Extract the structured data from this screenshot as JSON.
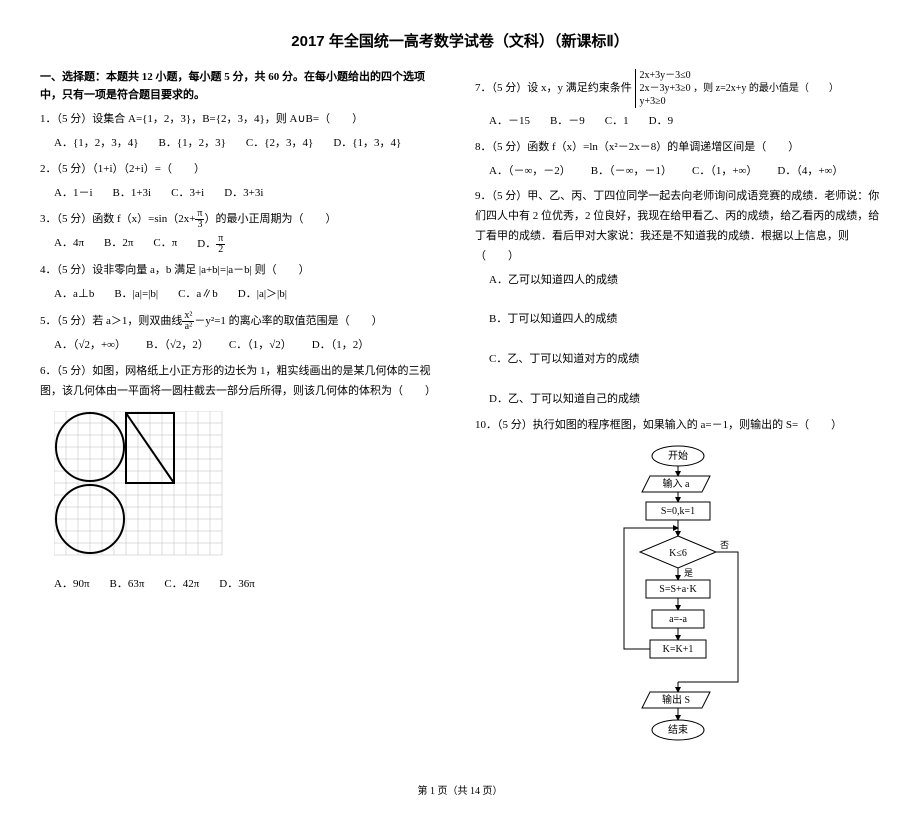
{
  "title": "2017 年全国统一高考数学试卷（文科）（新课标Ⅱ）",
  "section1": "一、选择题：本题共 12 小题，每小题 5 分，共 60 分。在每小题给出的四个选项中，只有一项是符合题目要求的。",
  "q1": {
    "stem": "1．（5 分）设集合 A={1，2，3}，B={2，3，4}，则 A∪B=（　　）",
    "A": "A．{1，2，3，4}",
    "B": "B．{1，2，3}",
    "C": "C．{2，3，4}",
    "D": "D．{1，3，4}"
  },
  "q2": {
    "stem": "2．（5 分）（1+i）（2+i）=（　　）",
    "A": "A．1－i",
    "B": "B．1+3i",
    "C": "C．3+i",
    "D": "D．3+3i"
  },
  "q3": {
    "stemL": "3．（5 分）函数 f（x）=sin（2x+",
    "stemR": "）的最小正周期为（　　）",
    "fracN": "π",
    "fracD": "3",
    "A": "A．4π",
    "B": "B．2π",
    "C": "C．π",
    "D": "D．",
    "DfracN": "π",
    "DfracD": "2"
  },
  "q4": {
    "stem": "4．（5 分）设非零向量 a，b 满足 |a+b|=|a－b| 则（　　）",
    "A": "A．a⊥b",
    "B": "B．|a|=|b|",
    "C": "C．a∥b",
    "D": "D．|a|＞|b|"
  },
  "q5": {
    "stemL": "5．（5 分）若 a＞1，则双曲线",
    "stemR": "－y²=1 的离心率的取值范围是（　　）",
    "fracN": "x²",
    "fracD": "a²",
    "A": "A．（√2，+∞）",
    "B": "B．（√2，2）",
    "C": "C．（1，√2）",
    "D": "D．（1，2）"
  },
  "q6": {
    "stem": "6．（5 分）如图，网格纸上小正方形的边长为 1，粗实线画出的是某几何体的三视图，该几何体由一平面将一圆柱截去一部分后所得，则该几何体的体积为（　　）",
    "A": "A．90π",
    "B": "B．63π",
    "C": "C．42π",
    "D": "D．36π"
  },
  "q7": {
    "stemL": "7．（5 分）设 x，y 满足约束条件",
    "line1": "2x+3y－3≤0",
    "line2": "2x－3y+3≥0 ，则 z=2x+y 的最小值是（　　）",
    "line3": "y+3≥0",
    "A": "A．－15",
    "B": "B．－9",
    "C": "C．1",
    "D": "D．9"
  },
  "q8": {
    "stem": "8．（5 分）函数 f（x）=ln（x²－2x－8）的单调递增区间是（　　）",
    "A": "A．（－∞，－2）",
    "B": "B．（－∞，－1）",
    "C": "C．（1，+∞）",
    "D": "D．（4，+∞）"
  },
  "q9": {
    "stem": "9．（5 分）甲、乙、丙、丁四位同学一起去向老师询问成语竞赛的成绩．老师说：你们四人中有 2 位优秀，2 位良好，我现在给甲看乙、丙的成绩，给乙看丙的成绩，给丁看甲的成绩．看后甲对大家说：我还是不知道我的成绩．根据以上信息，则（　　）",
    "A": "A．乙可以知道四人的成绩",
    "B": "B．丁可以知道四人的成绩",
    "C": "C．乙、丁可以知道对方的成绩",
    "D": "D．乙、丁可以知道自己的成绩"
  },
  "q10": {
    "stem": "10．（5 分）执行如图的程序框图，如果输入的 a=－1，则输出的 S=（　　）",
    "flow": {
      "start": "开始",
      "input": "输入 a",
      "init": "S=0,k=1",
      "cond": "K≤6",
      "yes": "是",
      "no": "否",
      "calc1": "S=S+a·K",
      "calc2": "a=-a",
      "calc3": "K=K+1",
      "out": "输出 S",
      "end": "结束"
    }
  },
  "footer": "第 1 页（共 14 页）",
  "gridBlackCells": [
    [
      0,
      0
    ],
    [
      0,
      1
    ],
    [
      0,
      2
    ],
    [
      0,
      3
    ],
    [
      0,
      4
    ],
    [
      0,
      5
    ],
    [
      1,
      0
    ],
    [
      1,
      5
    ],
    [
      2,
      0
    ],
    [
      2,
      5
    ],
    [
      3,
      0
    ],
    [
      3,
      5
    ],
    [
      4,
      0
    ],
    [
      4,
      5
    ],
    [
      5,
      0
    ],
    [
      5,
      1
    ],
    [
      5,
      2
    ],
    [
      5,
      3
    ],
    [
      5,
      4
    ],
    [
      5,
      5
    ],
    [
      6,
      0
    ],
    [
      6,
      1
    ],
    [
      6,
      2
    ],
    [
      6,
      3
    ],
    [
      6,
      4
    ],
    [
      6,
      5
    ],
    [
      6,
      6
    ],
    [
      6,
      7
    ],
    [
      6,
      8
    ],
    [
      6,
      9
    ],
    [
      7,
      0
    ],
    [
      7,
      9
    ],
    [
      8,
      0
    ],
    [
      8,
      9
    ],
    [
      9,
      0
    ],
    [
      9,
      9
    ],
    [
      10,
      0
    ],
    [
      10,
      9
    ],
    [
      11,
      0
    ],
    [
      11,
      1
    ],
    [
      11,
      2
    ],
    [
      11,
      3
    ],
    [
      11,
      4
    ],
    [
      11,
      5
    ],
    [
      11,
      6
    ],
    [
      11,
      7
    ],
    [
      11,
      8
    ],
    [
      11,
      9
    ]
  ],
  "gridRows": 12,
  "gridCols": 14,
  "flowStyle": {
    "boxFill": "#ffffff",
    "stroke": "#000000",
    "fontSize": 10
  }
}
